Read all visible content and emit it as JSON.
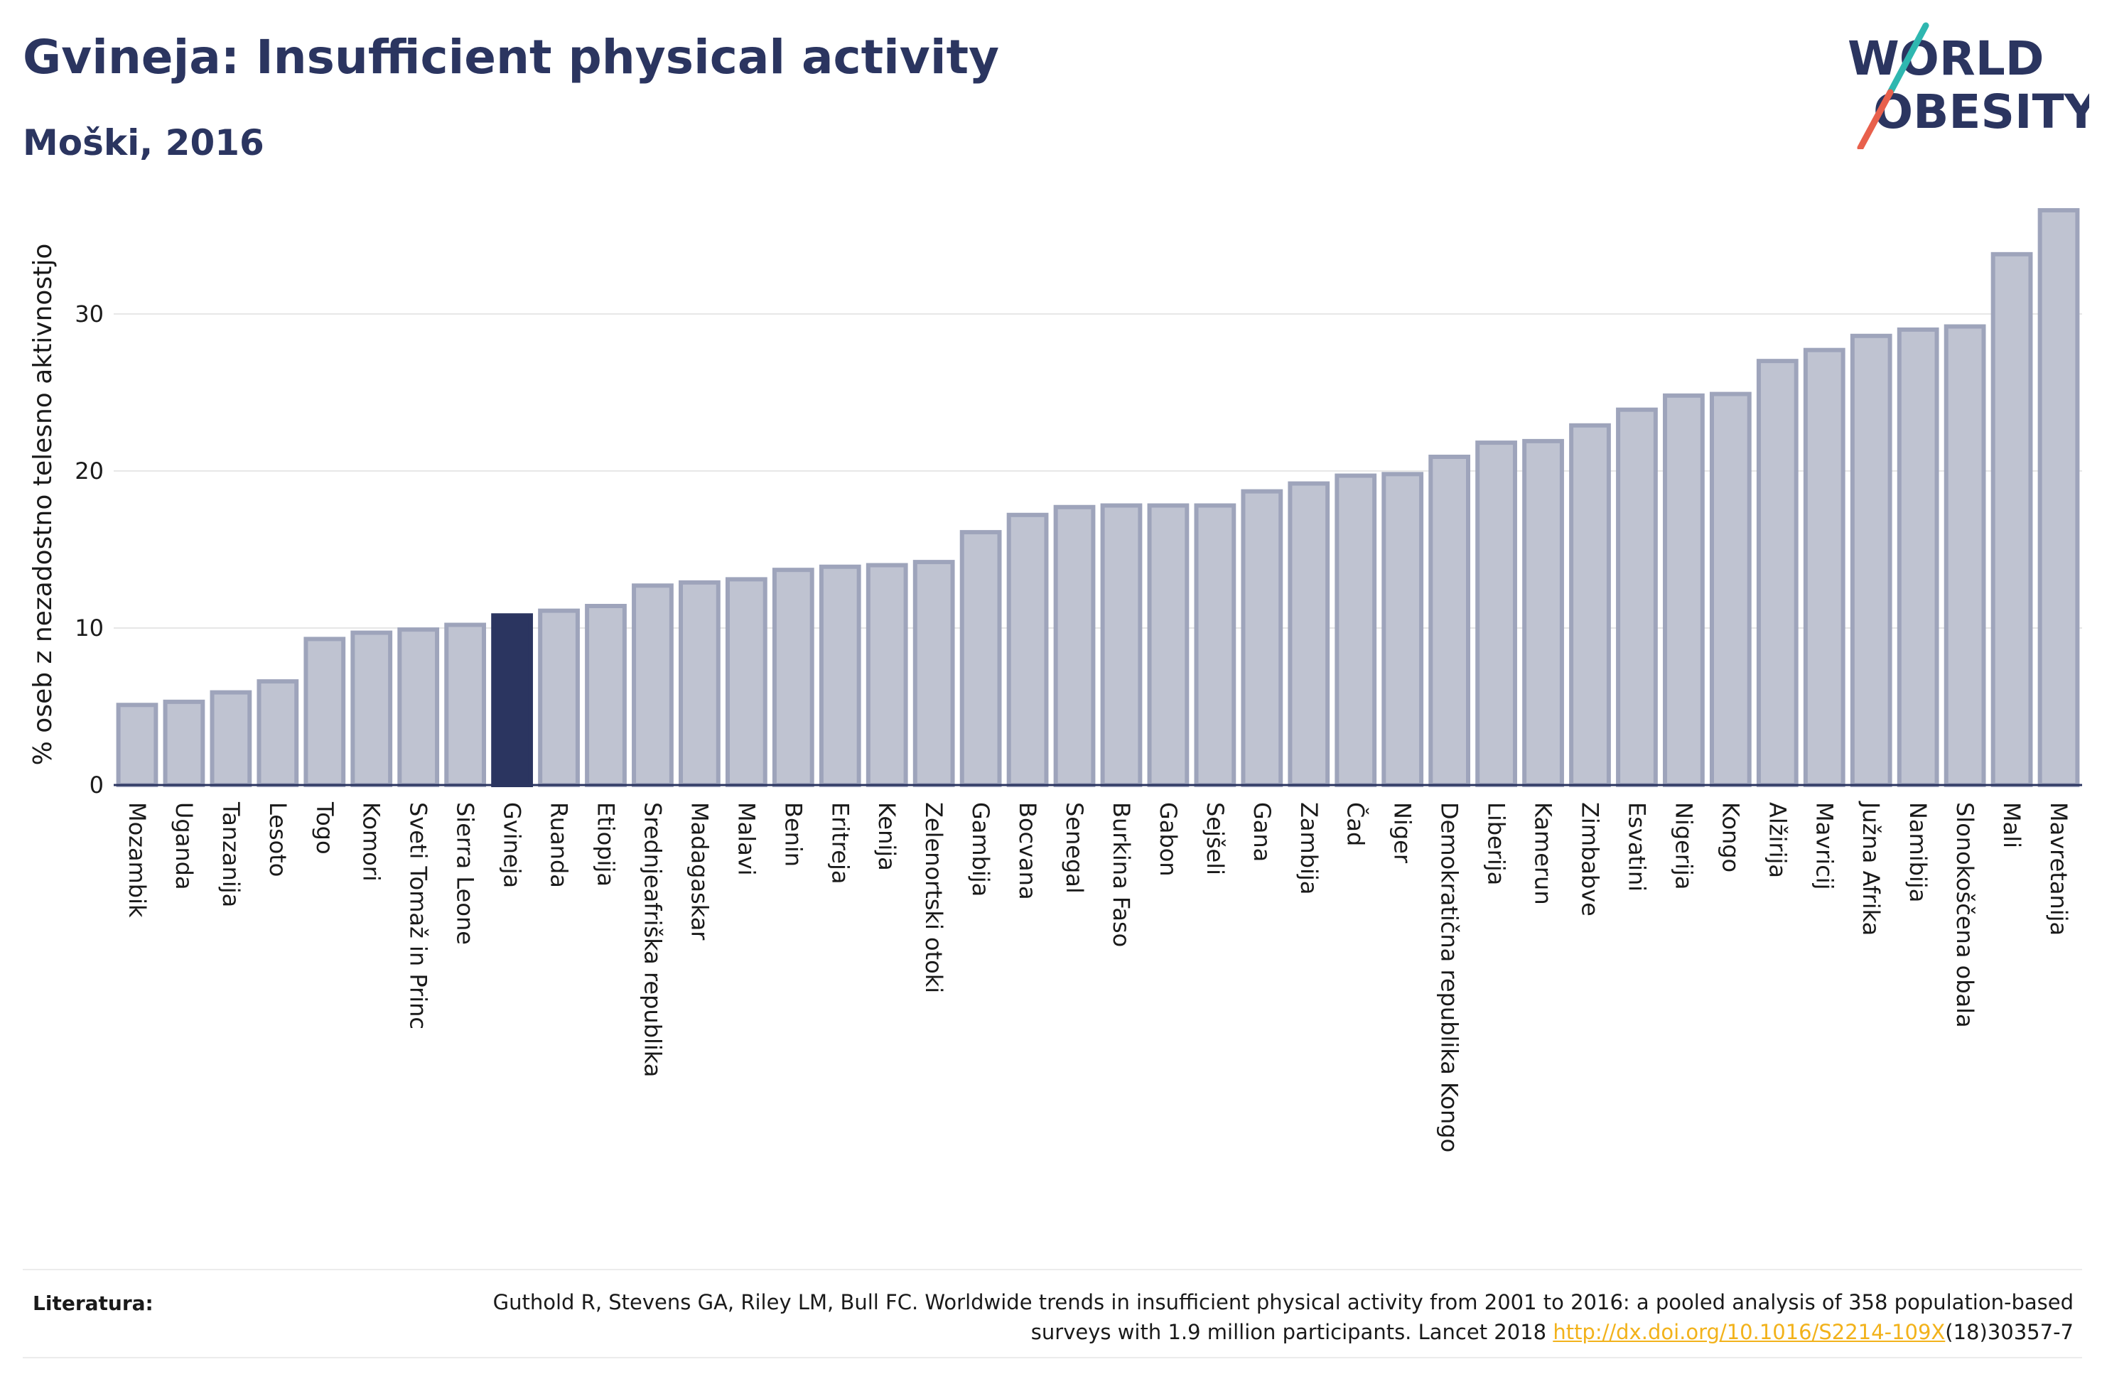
{
  "header": {
    "title": "Gvineja: Insufficient physical activity",
    "subtitle": "Moški, 2016"
  },
  "logo": {
    "line1": "WORLD",
    "line2": "OBESITY",
    "accent_colors": [
      "#2fb7b0",
      "#e8604c"
    ]
  },
  "colors": {
    "bar_fill": "#bfc3d1",
    "bar_stroke": "#9ea4bb",
    "highlight_fill": "#2b3560",
    "axis": "#2b3560",
    "grid": "#e6e6e6",
    "link": "#f2b21b"
  },
  "chart_data": {
    "type": "bar",
    "title": "Gvineja: Insufficient physical activity",
    "subtitle": "Moški, 2016",
    "ylabel": "% oseb z nezadostno telesno aktivnostjo",
    "xlabel": "",
    "ylim": [
      0,
      38
    ],
    "yticks": [
      0,
      10,
      20,
      30
    ],
    "grid": true,
    "highlight": "Gvineja",
    "categories": [
      "Mozambik",
      "Uganda",
      "Tanzanija",
      "Lesoto",
      "Togo",
      "Komori",
      "Sveti Tomaž in Princ",
      "Sierra Leone",
      "Gvineja",
      "Ruanda",
      "Etiopija",
      "Srednjeafriška republika",
      "Madagaskar",
      "Malavi",
      "Benin",
      "Eritreja",
      "Kenija",
      "Zelenortski otoki",
      "Gambija",
      "Bocvana",
      "Senegal",
      "Burkina Faso",
      "Gabon",
      "Sejšeli",
      "Gana",
      "Zambija",
      "Čad",
      "Niger",
      "Demokratična republika Kongo",
      "Liberija",
      "Kamerun",
      "Zimbabve",
      "Esvatini",
      "Nigerija",
      "Kongo",
      "Alžirija",
      "Mavricij",
      "Južna Afrika",
      "Namibija",
      "Slonokoščena obala",
      "Mali",
      "Mavretanija"
    ],
    "values": [
      5.1,
      5.3,
      5.9,
      6.6,
      9.3,
      9.7,
      9.9,
      10.2,
      10.8,
      11.1,
      11.4,
      12.7,
      12.9,
      13.1,
      13.7,
      13.9,
      14.0,
      14.2,
      16.1,
      17.2,
      17.7,
      17.8,
      17.8,
      17.8,
      18.7,
      19.2,
      19.7,
      19.8,
      20.9,
      21.8,
      21.9,
      22.9,
      23.9,
      24.8,
      24.9,
      27.0,
      27.7,
      28.6,
      29.0,
      29.2,
      33.8,
      36.6
    ]
  },
  "footer": {
    "label": "Literatura:",
    "reference_pre": "Guthold R, Stevens GA, Riley LM, Bull FC. Worldwide trends in insufficient physical activity from 2001 to 2016: a pooled analysis of 358 population-based surveys with 1.9 million participants. Lancet 2018 ",
    "reference_link": "http://dx.doi.org/10.1016/S2214-109X",
    "reference_post": "(18)30357-7"
  }
}
